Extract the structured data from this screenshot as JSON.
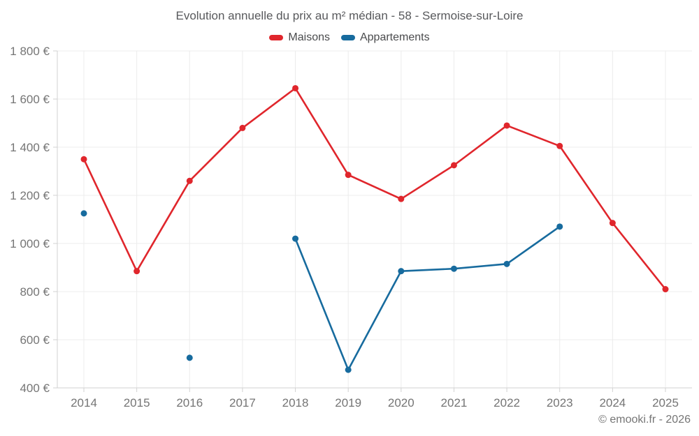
{
  "footer": {
    "copyright": "© emooki.fr - 2026"
  },
  "chart_data": {
    "type": "line",
    "title": "Evolution annuelle du prix au m² médian - 58 - Sermoise-sur-Loire",
    "categories": [
      "2014",
      "2015",
      "2016",
      "2017",
      "2018",
      "2019",
      "2020",
      "2021",
      "2022",
      "2023",
      "2024",
      "2025"
    ],
    "series": [
      {
        "name": "Maisons",
        "color": "#e0262c",
        "values": [
          1350,
          885,
          1260,
          1480,
          1645,
          1285,
          1185,
          1325,
          1490,
          1405,
          1085,
          810
        ]
      },
      {
        "name": "Appartements",
        "color": "#176b9e",
        "values": [
          1125,
          null,
          525,
          null,
          1020,
          475,
          885,
          895,
          915,
          1070,
          null,
          null
        ]
      }
    ],
    "ylim": [
      400,
      1800
    ],
    "ytick_values": [
      400,
      600,
      800,
      1000,
      1200,
      1400,
      1600,
      1800
    ],
    "ytick_labels": [
      "400 €",
      "600 €",
      "800 €",
      "1 000 €",
      "1 200 €",
      "1 400 €",
      "1 600 €",
      "1 800 €"
    ],
    "xlabel": "",
    "ylabel": "",
    "grid": true,
    "legend_position": "top",
    "grid_color": "#ececec",
    "axis_color": "#d2d2d2",
    "tick_label_color": "#757575"
  }
}
